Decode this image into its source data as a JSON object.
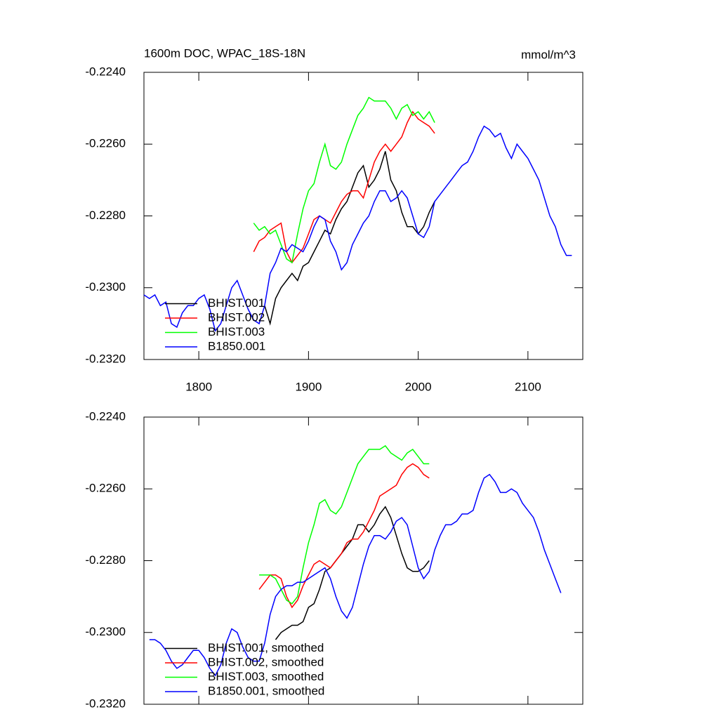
{
  "chart_data": [
    {
      "type": "line",
      "title": "1600m DOC, WPAC_18S-18N",
      "units": "mmol/m^3",
      "xlim": [
        1750,
        2150
      ],
      "xticks": [
        1800,
        1900,
        2000,
        2100
      ],
      "xtick_labels": true,
      "ylim": [
        -0.232,
        -0.224
      ],
      "yticks": [
        {
          "value": -0.232,
          "label": "-0.2320"
        },
        {
          "value": -0.23,
          "label": "-0.2300"
        },
        {
          "value": -0.228,
          "label": "-0.2280"
        },
        {
          "value": -0.226,
          "label": "-0.2260"
        },
        {
          "value": -0.224,
          "label": "-0.2240"
        }
      ],
      "legend": "lower left",
      "series": [
        {
          "name": "BHIST.001",
          "color": "#000000",
          "x": [
            1860,
            1865,
            1870,
            1875,
            1880,
            1885,
            1890,
            1895,
            1900,
            1905,
            1910,
            1915,
            1920,
            1925,
            1930,
            1935,
            1940,
            1945,
            1950,
            1955,
            1960,
            1965,
            1970,
            1975,
            1980,
            1985,
            1990,
            1995,
            2000,
            2005,
            2010,
            2015
          ],
          "values": [
            -0.2305,
            -0.231,
            -0.2303,
            -0.23,
            -0.2298,
            -0.2296,
            -0.2298,
            -0.2294,
            -0.2293,
            -0.229,
            -0.2287,
            -0.2284,
            -0.2285,
            -0.2281,
            -0.2278,
            -0.2276,
            -0.2272,
            -0.2268,
            -0.2266,
            -0.2272,
            -0.227,
            -0.2267,
            -0.2262,
            -0.227,
            -0.2273,
            -0.2279,
            -0.2283,
            -0.2283,
            -0.2285,
            -0.2283,
            -0.2279,
            -0.2276
          ]
        },
        {
          "name": "BHIST.002",
          "color": "#ff0000",
          "x": [
            1850,
            1855,
            1860,
            1865,
            1870,
            1875,
            1880,
            1885,
            1890,
            1895,
            1900,
            1905,
            1910,
            1915,
            1920,
            1925,
            1930,
            1935,
            1940,
            1945,
            1950,
            1955,
            1960,
            1965,
            1970,
            1975,
            1980,
            1985,
            1990,
            1995,
            2000,
            2005,
            2010,
            2015
          ],
          "values": [
            -0.229,
            -0.2287,
            -0.2286,
            -0.2284,
            -0.2283,
            -0.2282,
            -0.229,
            -0.2293,
            -0.2291,
            -0.2289,
            -0.2285,
            -0.2281,
            -0.228,
            -0.2281,
            -0.2282,
            -0.2279,
            -0.2276,
            -0.2274,
            -0.2273,
            -0.2273,
            -0.2275,
            -0.227,
            -0.2265,
            -0.2262,
            -0.226,
            -0.2262,
            -0.226,
            -0.2258,
            -0.2254,
            -0.2251,
            -0.2253,
            -0.2254,
            -0.2255,
            -0.2257
          ]
        },
        {
          "name": "BHIST.003",
          "color": "#00ff00",
          "x": [
            1850,
            1855,
            1860,
            1865,
            1870,
            1875,
            1880,
            1885,
            1890,
            1895,
            1900,
            1905,
            1910,
            1915,
            1920,
            1925,
            1930,
            1935,
            1940,
            1945,
            1950,
            1955,
            1960,
            1965,
            1970,
            1975,
            1980,
            1985,
            1990,
            1995,
            2000,
            2005,
            2010,
            2015
          ],
          "values": [
            -0.2282,
            -0.2284,
            -0.2283,
            -0.2285,
            -0.2284,
            -0.2288,
            -0.2292,
            -0.2293,
            -0.2285,
            -0.2278,
            -0.2273,
            -0.2271,
            -0.2265,
            -0.226,
            -0.2266,
            -0.2267,
            -0.2265,
            -0.226,
            -0.2256,
            -0.2252,
            -0.225,
            -0.2247,
            -0.2248,
            -0.2248,
            -0.2248,
            -0.225,
            -0.2253,
            -0.225,
            -0.2249,
            -0.2252,
            -0.2251,
            -0.2253,
            -0.2251,
            -0.2254
          ]
        },
        {
          "name": "B1850.001",
          "color": "#0000ff",
          "x": [
            1750,
            1755,
            1760,
            1765,
            1770,
            1775,
            1780,
            1785,
            1790,
            1795,
            1800,
            1805,
            1810,
            1815,
            1820,
            1825,
            1830,
            1835,
            1840,
            1845,
            1850,
            1855,
            1860,
            1865,
            1870,
            1875,
            1880,
            1885,
            1890,
            1895,
            1900,
            1905,
            1910,
            1915,
            1920,
            1925,
            1930,
            1935,
            1940,
            1945,
            1950,
            1955,
            1960,
            1965,
            1970,
            1975,
            1980,
            1985,
            1990,
            1995,
            2000,
            2005,
            2010,
            2015,
            2020,
            2025,
            2030,
            2035,
            2040,
            2045,
            2050,
            2055,
            2060,
            2065,
            2070,
            2075,
            2080,
            2085,
            2090,
            2095,
            2100,
            2105,
            2110,
            2115,
            2120,
            2125,
            2130,
            2135,
            2140
          ],
          "values": [
            -0.2302,
            -0.2303,
            -0.2302,
            -0.2305,
            -0.2304,
            -0.231,
            -0.2311,
            -0.2307,
            -0.2305,
            -0.2305,
            -0.2303,
            -0.2302,
            -0.2306,
            -0.2312,
            -0.231,
            -0.2305,
            -0.23,
            -0.2298,
            -0.2302,
            -0.2306,
            -0.2309,
            -0.231,
            -0.2305,
            -0.2296,
            -0.2293,
            -0.2289,
            -0.229,
            -0.2288,
            -0.2289,
            -0.229,
            -0.2287,
            -0.2283,
            -0.228,
            -0.2281,
            -0.2287,
            -0.229,
            -0.2295,
            -0.2293,
            -0.2288,
            -0.2285,
            -0.2282,
            -0.228,
            -0.2276,
            -0.2273,
            -0.2273,
            -0.2276,
            -0.2275,
            -0.2273,
            -0.2275,
            -0.228,
            -0.2285,
            -0.2286,
            -0.2283,
            -0.2276,
            -0.2274,
            -0.2272,
            -0.227,
            -0.2268,
            -0.2266,
            -0.2265,
            -0.2262,
            -0.2258,
            -0.2255,
            -0.2256,
            -0.2258,
            -0.2257,
            -0.2261,
            -0.2264,
            -0.226,
            -0.2262,
            -0.2264,
            -0.2267,
            -0.227,
            -0.2275,
            -0.228,
            -0.2283,
            -0.2288,
            -0.2291,
            -0.2291
          ]
        }
      ]
    },
    {
      "type": "line",
      "xlim": [
        1750,
        2150
      ],
      "xticks": [
        1800,
        1900,
        2000,
        2100
      ],
      "xtick_labels": false,
      "ylim": [
        -0.232,
        -0.224
      ],
      "yticks": [
        {
          "value": -0.232,
          "label": "-0.2320"
        },
        {
          "value": -0.23,
          "label": "-0.2300"
        },
        {
          "value": -0.228,
          "label": "-0.2280"
        },
        {
          "value": -0.226,
          "label": "-0.2260"
        },
        {
          "value": -0.224,
          "label": "-0.2240"
        }
      ],
      "legend": "lower left",
      "series": [
        {
          "name": "BHIST.001, smoothed",
          "color": "#000000",
          "x": [
            1870,
            1875,
            1880,
            1885,
            1890,
            1895,
            1900,
            1905,
            1910,
            1915,
            1920,
            1925,
            1930,
            1935,
            1940,
            1945,
            1950,
            1955,
            1960,
            1965,
            1970,
            1975,
            1980,
            1985,
            1990,
            1995,
            2000,
            2005,
            2010
          ],
          "values": [
            -0.2302,
            -0.23,
            -0.2299,
            -0.2298,
            -0.2298,
            -0.2297,
            -0.2293,
            -0.2292,
            -0.2288,
            -0.2283,
            -0.2282,
            -0.228,
            -0.2278,
            -0.2276,
            -0.2274,
            -0.227,
            -0.227,
            -0.2272,
            -0.227,
            -0.2267,
            -0.2265,
            -0.2268,
            -0.2273,
            -0.2278,
            -0.2282,
            -0.2283,
            -0.2283,
            -0.2282,
            -0.228
          ]
        },
        {
          "name": "BHIST.002, smoothed",
          "color": "#ff0000",
          "x": [
            1855,
            1860,
            1865,
            1870,
            1875,
            1880,
            1885,
            1890,
            1895,
            1900,
            1905,
            1910,
            1915,
            1920,
            1925,
            1930,
            1935,
            1940,
            1945,
            1950,
            1955,
            1960,
            1965,
            1970,
            1975,
            1980,
            1985,
            1990,
            1995,
            2000,
            2005,
            2010
          ],
          "values": [
            -0.2288,
            -0.2286,
            -0.2284,
            -0.2284,
            -0.2285,
            -0.229,
            -0.2293,
            -0.2291,
            -0.2287,
            -0.2284,
            -0.2281,
            -0.228,
            -0.2281,
            -0.2282,
            -0.228,
            -0.2278,
            -0.2275,
            -0.2274,
            -0.2274,
            -0.2272,
            -0.2269,
            -0.2266,
            -0.2262,
            -0.2261,
            -0.226,
            -0.2259,
            -0.2256,
            -0.2254,
            -0.2253,
            -0.2254,
            -0.2256,
            -0.2257
          ]
        },
        {
          "name": "BHIST.003, smoothed",
          "color": "#00ff00",
          "x": [
            1855,
            1860,
            1865,
            1870,
            1875,
            1880,
            1885,
            1890,
            1895,
            1900,
            1905,
            1910,
            1915,
            1920,
            1925,
            1930,
            1935,
            1940,
            1945,
            1950,
            1955,
            1960,
            1965,
            1970,
            1975,
            1980,
            1985,
            1990,
            1995,
            2000,
            2005,
            2010
          ],
          "values": [
            -0.2284,
            -0.2284,
            -0.2284,
            -0.2285,
            -0.2288,
            -0.2291,
            -0.2292,
            -0.229,
            -0.2282,
            -0.2275,
            -0.227,
            -0.2264,
            -0.2263,
            -0.2266,
            -0.2267,
            -0.2265,
            -0.2261,
            -0.2257,
            -0.2253,
            -0.2251,
            -0.2249,
            -0.2249,
            -0.2249,
            -0.2248,
            -0.225,
            -0.2251,
            -0.2252,
            -0.225,
            -0.2249,
            -0.2251,
            -0.2253,
            -0.2253
          ]
        },
        {
          "name": "B1850.001, smoothed",
          "color": "#0000ff",
          "x": [
            1755,
            1760,
            1765,
            1770,
            1775,
            1780,
            1785,
            1790,
            1795,
            1800,
            1805,
            1810,
            1815,
            1820,
            1825,
            1830,
            1835,
            1840,
            1845,
            1850,
            1855,
            1860,
            1865,
            1870,
            1875,
            1880,
            1885,
            1890,
            1895,
            1900,
            1905,
            1910,
            1915,
            1920,
            1925,
            1930,
            1935,
            1940,
            1945,
            1950,
            1955,
            1960,
            1965,
            1970,
            1975,
            1980,
            1985,
            1990,
            1995,
            2000,
            2005,
            2010,
            2015,
            2020,
            2025,
            2030,
            2035,
            2040,
            2045,
            2050,
            2055,
            2060,
            2065,
            2070,
            2075,
            2080,
            2085,
            2090,
            2095,
            2100,
            2105,
            2110,
            2115,
            2120,
            2125,
            2130
          ],
          "values": [
            -0.2302,
            -0.2302,
            -0.2303,
            -0.2305,
            -0.2308,
            -0.231,
            -0.2309,
            -0.2307,
            -0.2305,
            -0.2305,
            -0.2307,
            -0.231,
            -0.2312,
            -0.2309,
            -0.2303,
            -0.2299,
            -0.23,
            -0.2304,
            -0.2307,
            -0.2308,
            -0.2308,
            -0.2303,
            -0.2295,
            -0.229,
            -0.2288,
            -0.2287,
            -0.2287,
            -0.2286,
            -0.2286,
            -0.2285,
            -0.2284,
            -0.2283,
            -0.2282,
            -0.2285,
            -0.229,
            -0.2294,
            -0.2296,
            -0.2293,
            -0.2287,
            -0.2281,
            -0.2276,
            -0.2273,
            -0.2273,
            -0.2274,
            -0.2272,
            -0.2269,
            -0.2268,
            -0.227,
            -0.2276,
            -0.2282,
            -0.2285,
            -0.2283,
            -0.2277,
            -0.2273,
            -0.227,
            -0.227,
            -0.2269,
            -0.2267,
            -0.2267,
            -0.2266,
            -0.2261,
            -0.2257,
            -0.2256,
            -0.2258,
            -0.2261,
            -0.2261,
            -0.226,
            -0.2261,
            -0.2264,
            -0.2266,
            -0.2268,
            -0.2272,
            -0.2277,
            -0.2281,
            -0.2285,
            -0.2289
          ]
        }
      ]
    }
  ]
}
